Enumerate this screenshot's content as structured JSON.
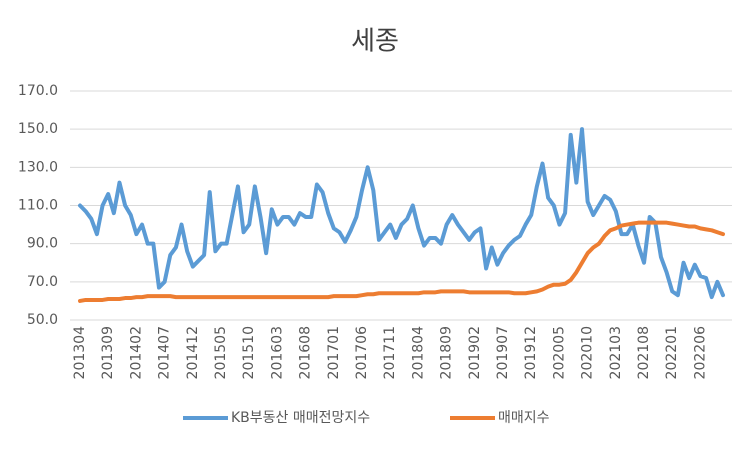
{
  "chart_data": {
    "type": "line",
    "title": "세종",
    "categories": [
      "201304",
      null,
      null,
      null,
      null,
      "201309",
      null,
      null,
      null,
      null,
      "201402",
      null,
      null,
      null,
      null,
      "201407",
      null,
      null,
      null,
      null,
      "201412",
      null,
      null,
      null,
      null,
      "201505",
      null,
      null,
      null,
      null,
      "201510",
      null,
      null,
      null,
      null,
      "201603",
      null,
      null,
      null,
      null,
      "201608",
      null,
      null,
      null,
      null,
      "201701",
      null,
      null,
      null,
      null,
      "201706",
      null,
      null,
      null,
      null,
      "201711",
      null,
      null,
      null,
      null,
      "201804",
      null,
      null,
      null,
      null,
      "201809",
      null,
      null,
      null,
      null,
      "201902",
      null,
      null,
      null,
      null,
      "201907",
      null,
      null,
      null,
      null,
      "201912",
      null,
      null,
      null,
      null,
      "202005",
      null,
      null,
      null,
      null,
      "202010",
      null,
      null,
      null,
      null,
      "202103",
      null,
      null,
      null,
      null,
      "202108",
      null,
      null,
      null,
      null,
      "202201",
      null,
      null,
      null,
      null,
      "202206",
      null,
      null,
      null,
      null
    ],
    "series": [
      {
        "name": "KB부동산 매매전망지수",
        "color": "#5b9bd5",
        "values": [
          110,
          107,
          103,
          95,
          110,
          116,
          106,
          122,
          110,
          105,
          95,
          100,
          90,
          90,
          67,
          70,
          84,
          88,
          100,
          86,
          78,
          81,
          84,
          117,
          86,
          90,
          90,
          105,
          120,
          96,
          100,
          120,
          104,
          85,
          108,
          100,
          104,
          104,
          100,
          106,
          104,
          104,
          121,
          117,
          106,
          98,
          96,
          91,
          97,
          104,
          118,
          130,
          118,
          92,
          96,
          100,
          93,
          100,
          103,
          110,
          98,
          89,
          93,
          93,
          90,
          100,
          105,
          100,
          96,
          92,
          96,
          98,
          77,
          88,
          79,
          85,
          89,
          92,
          94,
          100,
          105,
          120,
          132,
          114,
          110,
          100,
          106,
          147,
          122,
          150,
          112,
          105,
          110,
          115,
          113,
          107,
          95,
          95,
          100,
          89,
          80,
          104,
          101,
          83,
          75,
          65,
          63,
          80,
          72,
          79,
          73,
          72,
          62,
          70,
          63
        ]
      },
      {
        "name": "매매지수",
        "color": "#ed7d31",
        "values": [
          60,
          60.5,
          60.5,
          60.5,
          60.5,
          61,
          61,
          61,
          61.5,
          61.5,
          62,
          62,
          62.5,
          62.5,
          62.5,
          62.5,
          62.5,
          62,
          62,
          62,
          62,
          62,
          62,
          62,
          62,
          62,
          62,
          62,
          62,
          62,
          62,
          62,
          62,
          62,
          62,
          62,
          62,
          62,
          62,
          62,
          62,
          62,
          62,
          62,
          62,
          62.5,
          62.5,
          62.5,
          62.5,
          62.5,
          63,
          63.5,
          63.5,
          64,
          64,
          64,
          64,
          64,
          64,
          64,
          64,
          64.5,
          64.5,
          64.5,
          65,
          65,
          65,
          65,
          65,
          64.5,
          64.5,
          64.5,
          64.5,
          64.5,
          64.5,
          64.5,
          64.5,
          64,
          64,
          64,
          64.5,
          65,
          66,
          67.5,
          68.5,
          68.5,
          69,
          71,
          75,
          80,
          85,
          88,
          90,
          94,
          97,
          98,
          99.5,
          100,
          100.5,
          101,
          101,
          101,
          101,
          101,
          101,
          100.5,
          100,
          99.5,
          99,
          99,
          98,
          97.5,
          97,
          96,
          95
        ]
      }
    ],
    "ylim": [
      50,
      170
    ],
    "yticks": [
      {
        "value": 50,
        "label": "50.0"
      },
      {
        "value": 70,
        "label": "70.0"
      },
      {
        "value": 90,
        "label": "90.0"
      },
      {
        "value": 110,
        "label": "110.0"
      },
      {
        "value": 130,
        "label": "130.0"
      },
      {
        "value": 150,
        "label": "150.0"
      },
      {
        "value": 170,
        "label": "170.0"
      }
    ],
    "grid": true,
    "legend": "bottom"
  }
}
